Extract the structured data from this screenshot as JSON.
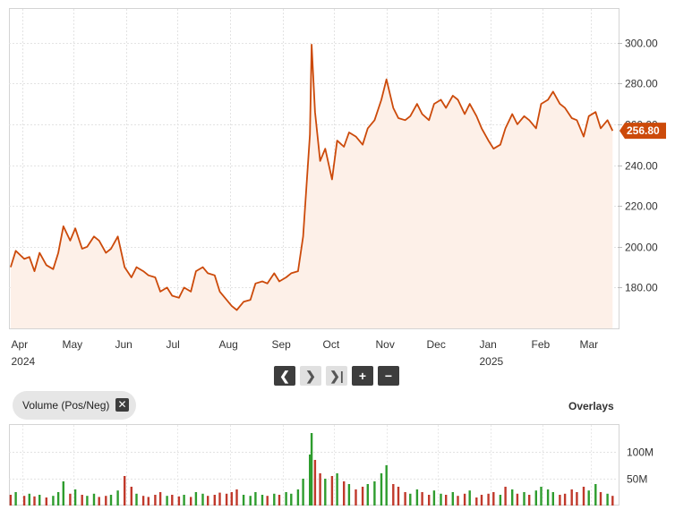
{
  "chart_data": [
    {
      "type": "area",
      "price_axis": {
        "ticks": [
          "300.00",
          "280.00",
          "260.00",
          "240.00",
          "220.00",
          "200.00",
          "180.00"
        ],
        "ylim": [
          160,
          320
        ]
      },
      "x_labels": [
        {
          "month": "Apr",
          "year": "2024",
          "date": "2024-04-01"
        },
        {
          "month": "May",
          "year": "",
          "date": "2024-05-01"
        },
        {
          "month": "Jun",
          "year": "",
          "date": "2024-06-01"
        },
        {
          "month": "Jul",
          "year": "",
          "date": "2024-07-01"
        },
        {
          "month": "Aug",
          "year": "",
          "date": "2024-08-01"
        },
        {
          "month": "Sep",
          "year": "",
          "date": "2024-09-01"
        },
        {
          "month": "Oct",
          "year": "",
          "date": "2024-10-01"
        },
        {
          "month": "Nov",
          "year": "",
          "date": "2024-11-01"
        },
        {
          "month": "Dec",
          "year": "",
          "date": "2024-12-01"
        },
        {
          "month": "Jan",
          "year": "2025",
          "date": "2025-01-01"
        },
        {
          "month": "Feb",
          "year": "",
          "date": "2025-02-01"
        },
        {
          "month": "Mar",
          "year": "",
          "date": "2025-03-01"
        }
      ],
      "last_price": "256.80",
      "grid": true,
      "colors": {
        "line": "#cc4a0a",
        "fill": "#fdf0e8",
        "badge": "#cc4a0a"
      },
      "points": [
        [
          "2024-03-25",
          190
        ],
        [
          "2024-03-28",
          198
        ],
        [
          "2024-04-02",
          194
        ],
        [
          "2024-04-05",
          195
        ],
        [
          "2024-04-08",
          188
        ],
        [
          "2024-04-11",
          197
        ],
        [
          "2024-04-15",
          191
        ],
        [
          "2024-04-19",
          189
        ],
        [
          "2024-04-22",
          197
        ],
        [
          "2024-04-25",
          210
        ],
        [
          "2024-04-29",
          203
        ],
        [
          "2024-05-02",
          209
        ],
        [
          "2024-05-06",
          199
        ],
        [
          "2024-05-09",
          200
        ],
        [
          "2024-05-13",
          205
        ],
        [
          "2024-05-16",
          203
        ],
        [
          "2024-05-20",
          197
        ],
        [
          "2024-05-23",
          199
        ],
        [
          "2024-05-27",
          205
        ],
        [
          "2024-05-31",
          190
        ],
        [
          "2024-06-04",
          185
        ],
        [
          "2024-06-07",
          190
        ],
        [
          "2024-06-11",
          188
        ],
        [
          "2024-06-14",
          186
        ],
        [
          "2024-06-18",
          185
        ],
        [
          "2024-06-21",
          178
        ],
        [
          "2024-06-25",
          180
        ],
        [
          "2024-06-28",
          176
        ],
        [
          "2024-07-02",
          175
        ],
        [
          "2024-07-05",
          180
        ],
        [
          "2024-07-09",
          178
        ],
        [
          "2024-07-12",
          188
        ],
        [
          "2024-07-16",
          190
        ],
        [
          "2024-07-19",
          187
        ],
        [
          "2024-07-23",
          186
        ],
        [
          "2024-07-26",
          178
        ],
        [
          "2024-07-30",
          174
        ],
        [
          "2024-08-02",
          171
        ],
        [
          "2024-08-05",
          169
        ],
        [
          "2024-08-09",
          173
        ],
        [
          "2024-08-13",
          174
        ],
        [
          "2024-08-16",
          182
        ],
        [
          "2024-08-20",
          183
        ],
        [
          "2024-08-23",
          182
        ],
        [
          "2024-08-27",
          187
        ],
        [
          "2024-08-30",
          183
        ],
        [
          "2024-09-03",
          185
        ],
        [
          "2024-09-06",
          187
        ],
        [
          "2024-09-10",
          188
        ],
        [
          "2024-09-13",
          205
        ],
        [
          "2024-09-17",
          255
        ],
        [
          "2024-09-18",
          299
        ],
        [
          "2024-09-20",
          266
        ],
        [
          "2024-09-23",
          242
        ],
        [
          "2024-09-26",
          248
        ],
        [
          "2024-09-30",
          233
        ],
        [
          "2024-10-03",
          252
        ],
        [
          "2024-10-07",
          249
        ],
        [
          "2024-10-10",
          256
        ],
        [
          "2024-10-14",
          254
        ],
        [
          "2024-10-18",
          250
        ],
        [
          "2024-10-21",
          258
        ],
        [
          "2024-10-25",
          262
        ],
        [
          "2024-10-29",
          272
        ],
        [
          "2024-11-01",
          282
        ],
        [
          "2024-11-05",
          268
        ],
        [
          "2024-11-08",
          263
        ],
        [
          "2024-11-12",
          262
        ],
        [
          "2024-11-15",
          264
        ],
        [
          "2024-11-19",
          270
        ],
        [
          "2024-11-22",
          265
        ],
        [
          "2024-11-26",
          262
        ],
        [
          "2024-11-29",
          270
        ],
        [
          "2024-12-03",
          272
        ],
        [
          "2024-12-06",
          268
        ],
        [
          "2024-12-10",
          274
        ],
        [
          "2024-12-13",
          272
        ],
        [
          "2024-12-17",
          265
        ],
        [
          "2024-12-20",
          270
        ],
        [
          "2024-12-24",
          264
        ],
        [
          "2024-12-27",
          258
        ],
        [
          "2024-12-31",
          252
        ],
        [
          "2025-01-03",
          248
        ],
        [
          "2025-01-07",
          250
        ],
        [
          "2025-01-10",
          258
        ],
        [
          "2025-01-14",
          265
        ],
        [
          "2025-01-17",
          260
        ],
        [
          "2025-01-21",
          264
        ],
        [
          "2025-01-24",
          262
        ],
        [
          "2025-01-28",
          258
        ],
        [
          "2025-01-31",
          270
        ],
        [
          "2025-02-04",
          272
        ],
        [
          "2025-02-07",
          276
        ],
        [
          "2025-02-11",
          270
        ],
        [
          "2025-02-14",
          268
        ],
        [
          "2025-02-18",
          263
        ],
        [
          "2025-02-21",
          262
        ],
        [
          "2025-02-25",
          254
        ],
        [
          "2025-02-28",
          264
        ],
        [
          "2025-03-04",
          266
        ],
        [
          "2025-03-07",
          258
        ],
        [
          "2025-03-11",
          262
        ],
        [
          "2025-03-14",
          256.8
        ]
      ]
    },
    {
      "type": "bar",
      "series_name": "Volume (Pos/Neg)",
      "volume_axis": {
        "ticks": [
          "100M",
          "50M"
        ],
        "ylim": [
          0,
          150000000
        ]
      },
      "colors": {
        "positive": "#2e9c2e",
        "negative": "#c0392b"
      },
      "values": [
        {
          "date": "2024-03-25",
          "value": 20000000,
          "dir": "neg"
        },
        {
          "date": "2024-03-28",
          "value": 25000000,
          "dir": "pos"
        },
        {
          "date": "2024-04-02",
          "value": 18000000,
          "dir": "neg"
        },
        {
          "date": "2024-04-05",
          "value": 22000000,
          "dir": "pos"
        },
        {
          "date": "2024-04-08",
          "value": 17000000,
          "dir": "neg"
        },
        {
          "date": "2024-04-11",
          "value": 20000000,
          "dir": "pos"
        },
        {
          "date": "2024-04-15",
          "value": 15000000,
          "dir": "neg"
        },
        {
          "date": "2024-04-19",
          "value": 18000000,
          "dir": "pos"
        },
        {
          "date": "2024-04-22",
          "value": 25000000,
          "dir": "pos"
        },
        {
          "date": "2024-04-25",
          "value": 45000000,
          "dir": "pos"
        },
        {
          "date": "2024-04-29",
          "value": 22000000,
          "dir": "neg"
        },
        {
          "date": "2024-05-02",
          "value": 30000000,
          "dir": "pos"
        },
        {
          "date": "2024-05-06",
          "value": 20000000,
          "dir": "neg"
        },
        {
          "date": "2024-05-09",
          "value": 18000000,
          "dir": "pos"
        },
        {
          "date": "2024-05-13",
          "value": 22000000,
          "dir": "pos"
        },
        {
          "date": "2024-05-16",
          "value": 16000000,
          "dir": "neg"
        },
        {
          "date": "2024-05-20",
          "value": 18000000,
          "dir": "neg"
        },
        {
          "date": "2024-05-23",
          "value": 20000000,
          "dir": "pos"
        },
        {
          "date": "2024-05-27",
          "value": 28000000,
          "dir": "pos"
        },
        {
          "date": "2024-05-31",
          "value": 55000000,
          "dir": "neg"
        },
        {
          "date": "2024-06-04",
          "value": 35000000,
          "dir": "neg"
        },
        {
          "date": "2024-06-07",
          "value": 22000000,
          "dir": "pos"
        },
        {
          "date": "2024-06-11",
          "value": 18000000,
          "dir": "neg"
        },
        {
          "date": "2024-06-14",
          "value": 16000000,
          "dir": "neg"
        },
        {
          "date": "2024-06-18",
          "value": 20000000,
          "dir": "neg"
        },
        {
          "date": "2024-06-21",
          "value": 25000000,
          "dir": "neg"
        },
        {
          "date": "2024-06-25",
          "value": 18000000,
          "dir": "pos"
        },
        {
          "date": "2024-06-28",
          "value": 20000000,
          "dir": "neg"
        },
        {
          "date": "2024-07-02",
          "value": 17000000,
          "dir": "neg"
        },
        {
          "date": "2024-07-05",
          "value": 20000000,
          "dir": "pos"
        },
        {
          "date": "2024-07-09",
          "value": 16000000,
          "dir": "neg"
        },
        {
          "date": "2024-07-12",
          "value": 25000000,
          "dir": "pos"
        },
        {
          "date": "2024-07-16",
          "value": 22000000,
          "dir": "pos"
        },
        {
          "date": "2024-07-19",
          "value": 18000000,
          "dir": "neg"
        },
        {
          "date": "2024-07-23",
          "value": 20000000,
          "dir": "neg"
        },
        {
          "date": "2024-07-26",
          "value": 24000000,
          "dir": "neg"
        },
        {
          "date": "2024-07-30",
          "value": 22000000,
          "dir": "neg"
        },
        {
          "date": "2024-08-02",
          "value": 25000000,
          "dir": "neg"
        },
        {
          "date": "2024-08-05",
          "value": 30000000,
          "dir": "neg"
        },
        {
          "date": "2024-08-09",
          "value": 20000000,
          "dir": "pos"
        },
        {
          "date": "2024-08-13",
          "value": 18000000,
          "dir": "pos"
        },
        {
          "date": "2024-08-16",
          "value": 25000000,
          "dir": "pos"
        },
        {
          "date": "2024-08-20",
          "value": 20000000,
          "dir": "pos"
        },
        {
          "date": "2024-08-23",
          "value": 18000000,
          "dir": "neg"
        },
        {
          "date": "2024-08-27",
          "value": 22000000,
          "dir": "pos"
        },
        {
          "date": "2024-08-30",
          "value": 20000000,
          "dir": "neg"
        },
        {
          "date": "2024-09-03",
          "value": 25000000,
          "dir": "pos"
        },
        {
          "date": "2024-09-06",
          "value": 22000000,
          "dir": "pos"
        },
        {
          "date": "2024-09-10",
          "value": 30000000,
          "dir": "pos"
        },
        {
          "date": "2024-09-13",
          "value": 50000000,
          "dir": "pos"
        },
        {
          "date": "2024-09-17",
          "value": 95000000,
          "dir": "pos"
        },
        {
          "date": "2024-09-18",
          "value": 135000000,
          "dir": "pos"
        },
        {
          "date": "2024-09-20",
          "value": 85000000,
          "dir": "neg"
        },
        {
          "date": "2024-09-23",
          "value": 60000000,
          "dir": "neg"
        },
        {
          "date": "2024-09-26",
          "value": 50000000,
          "dir": "pos"
        },
        {
          "date": "2024-09-30",
          "value": 55000000,
          "dir": "neg"
        },
        {
          "date": "2024-10-03",
          "value": 60000000,
          "dir": "pos"
        },
        {
          "date": "2024-10-07",
          "value": 45000000,
          "dir": "neg"
        },
        {
          "date": "2024-10-10",
          "value": 40000000,
          "dir": "pos"
        },
        {
          "date": "2024-10-14",
          "value": 30000000,
          "dir": "neg"
        },
        {
          "date": "2024-10-18",
          "value": 35000000,
          "dir": "neg"
        },
        {
          "date": "2024-10-21",
          "value": 40000000,
          "dir": "pos"
        },
        {
          "date": "2024-10-25",
          "value": 45000000,
          "dir": "pos"
        },
        {
          "date": "2024-10-29",
          "value": 60000000,
          "dir": "pos"
        },
        {
          "date": "2024-11-01",
          "value": 75000000,
          "dir": "pos"
        },
        {
          "date": "2024-11-05",
          "value": 40000000,
          "dir": "neg"
        },
        {
          "date": "2024-11-08",
          "value": 35000000,
          "dir": "neg"
        },
        {
          "date": "2024-11-12",
          "value": 25000000,
          "dir": "neg"
        },
        {
          "date": "2024-11-15",
          "value": 22000000,
          "dir": "pos"
        },
        {
          "date": "2024-11-19",
          "value": 30000000,
          "dir": "pos"
        },
        {
          "date": "2024-11-22",
          "value": 25000000,
          "dir": "neg"
        },
        {
          "date": "2024-11-26",
          "value": 20000000,
          "dir": "neg"
        },
        {
          "date": "2024-11-29",
          "value": 28000000,
          "dir": "pos"
        },
        {
          "date": "2024-12-03",
          "value": 22000000,
          "dir": "pos"
        },
        {
          "date": "2024-12-06",
          "value": 20000000,
          "dir": "neg"
        },
        {
          "date": "2024-12-10",
          "value": 25000000,
          "dir": "pos"
        },
        {
          "date": "2024-12-13",
          "value": 18000000,
          "dir": "neg"
        },
        {
          "date": "2024-12-17",
          "value": 22000000,
          "dir": "neg"
        },
        {
          "date": "2024-12-20",
          "value": 28000000,
          "dir": "pos"
        },
        {
          "date": "2024-12-24",
          "value": 15000000,
          "dir": "neg"
        },
        {
          "date": "2024-12-27",
          "value": 20000000,
          "dir": "neg"
        },
        {
          "date": "2024-12-31",
          "value": 22000000,
          "dir": "neg"
        },
        {
          "date": "2025-01-03",
          "value": 25000000,
          "dir": "neg"
        },
        {
          "date": "2025-01-07",
          "value": 20000000,
          "dir": "pos"
        },
        {
          "date": "2025-01-10",
          "value": 35000000,
          "dir": "neg"
        },
        {
          "date": "2025-01-14",
          "value": 30000000,
          "dir": "pos"
        },
        {
          "date": "2025-01-17",
          "value": 22000000,
          "dir": "neg"
        },
        {
          "date": "2025-01-21",
          "value": 25000000,
          "dir": "pos"
        },
        {
          "date": "2025-01-24",
          "value": 20000000,
          "dir": "neg"
        },
        {
          "date": "2025-01-28",
          "value": 28000000,
          "dir": "pos"
        },
        {
          "date": "2025-01-31",
          "value": 35000000,
          "dir": "pos"
        },
        {
          "date": "2025-02-04",
          "value": 30000000,
          "dir": "pos"
        },
        {
          "date": "2025-02-07",
          "value": 25000000,
          "dir": "pos"
        },
        {
          "date": "2025-02-11",
          "value": 20000000,
          "dir": "neg"
        },
        {
          "date": "2025-02-14",
          "value": 22000000,
          "dir": "neg"
        },
        {
          "date": "2025-02-18",
          "value": 30000000,
          "dir": "neg"
        },
        {
          "date": "2025-02-21",
          "value": 25000000,
          "dir": "neg"
        },
        {
          "date": "2025-02-25",
          "value": 35000000,
          "dir": "neg"
        },
        {
          "date": "2025-02-28",
          "value": 28000000,
          "dir": "pos"
        },
        {
          "date": "2025-03-04",
          "value": 40000000,
          "dir": "pos"
        },
        {
          "date": "2025-03-07",
          "value": 25000000,
          "dir": "neg"
        },
        {
          "date": "2025-03-11",
          "value": 22000000,
          "dir": "pos"
        },
        {
          "date": "2025-03-14",
          "value": 18000000,
          "dir": "neg"
        }
      ]
    }
  ],
  "controls": {
    "prev": "❮",
    "next": "❯",
    "end": "❯|",
    "zoom_in": "+",
    "zoom_out": "−"
  },
  "indicator_chip": {
    "label": "Volume (Pos/Neg)",
    "remove": "✕"
  },
  "overlays_label": "Overlays"
}
